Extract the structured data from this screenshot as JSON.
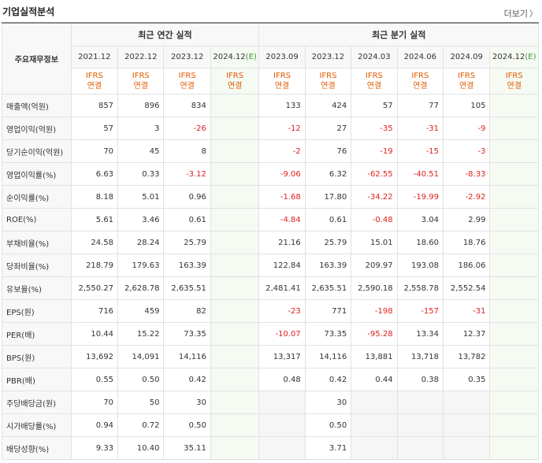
{
  "header": {
    "title": "기업실적분석",
    "more_label": "더보기"
  },
  "table": {
    "label_header": "주요재무정보",
    "groups": {
      "annual": "최근 연간 실적",
      "quarter": "최근 분기 실적"
    },
    "periods": [
      "2021.12",
      "2022.12",
      "2023.12",
      "2024.12",
      "2023.09",
      "2023.12",
      "2024.03",
      "2024.06",
      "2024.09",
      "2024.12"
    ],
    "est_mark": "(E)",
    "ifrs_top": "IFRS",
    "ifrs_bottom": "연결",
    "rows": [
      {
        "label": "매출액(억원)",
        "values": [
          "857",
          "896",
          "834",
          "",
          "133",
          "424",
          "57",
          "77",
          "105",
          ""
        ]
      },
      {
        "label": "영업이익(억원)",
        "values": [
          "57",
          "3",
          "-26",
          "",
          "-12",
          "27",
          "-35",
          "-31",
          "-9",
          ""
        ]
      },
      {
        "label": "당기순이익(억원)",
        "values": [
          "70",
          "45",
          "8",
          "",
          "-2",
          "76",
          "-19",
          "-15",
          "-3",
          ""
        ]
      },
      {
        "label": "영업이익률(%)",
        "values": [
          "6.63",
          "0.33",
          "-3.12",
          "",
          "-9.06",
          "6.32",
          "-62.55",
          "-40.51",
          "-8.33",
          ""
        ]
      },
      {
        "label": "순이익률(%)",
        "values": [
          "8.18",
          "5.01",
          "0.96",
          "",
          "-1.68",
          "17.80",
          "-34.22",
          "-19.99",
          "-2.92",
          ""
        ]
      },
      {
        "label": "ROE(%)",
        "values": [
          "5.61",
          "3.46",
          "0.61",
          "",
          "-4.84",
          "0.61",
          "-0.48",
          "3.04",
          "2.99",
          ""
        ]
      },
      {
        "label": "부채비율(%)",
        "values": [
          "24.58",
          "28.24",
          "25.79",
          "",
          "21.16",
          "25.79",
          "15.01",
          "18.60",
          "18.76",
          ""
        ]
      },
      {
        "label": "당좌비율(%)",
        "values": [
          "218.79",
          "179.63",
          "163.39",
          "",
          "122.84",
          "163.39",
          "209.97",
          "193.08",
          "186.06",
          ""
        ]
      },
      {
        "label": "유보율(%)",
        "values": [
          "2,550.27",
          "2,628.78",
          "2,635.51",
          "",
          "2,481.41",
          "2,635.51",
          "2,590.18",
          "2,558.78",
          "2,552.54",
          ""
        ]
      },
      {
        "label": "EPS(원)",
        "values": [
          "716",
          "459",
          "82",
          "",
          "-23",
          "771",
          "-198",
          "-157",
          "-31",
          ""
        ]
      },
      {
        "label": "PER(배)",
        "values": [
          "10.44",
          "15.22",
          "73.35",
          "",
          "-10.07",
          "73.35",
          "-95.28",
          "13.34",
          "12.37",
          ""
        ]
      },
      {
        "label": "BPS(원)",
        "values": [
          "13,692",
          "14,091",
          "14,116",
          "",
          "13,317",
          "14,116",
          "13,881",
          "13,718",
          "13,782",
          ""
        ]
      },
      {
        "label": "PBR(배)",
        "values": [
          "0.55",
          "0.50",
          "0.42",
          "",
          "0.48",
          "0.42",
          "0.44",
          "0.38",
          "0.35",
          ""
        ]
      },
      {
        "label": "주당배당금(원)",
        "values": [
          "70",
          "50",
          "30",
          "",
          "",
          "30",
          "",
          "",
          "",
          ""
        ]
      },
      {
        "label": "시가배당률(%)",
        "values": [
          "0.94",
          "0.72",
          "0.50",
          "",
          "",
          "0.50",
          "",
          "",
          "",
          ""
        ]
      },
      {
        "label": "배당성향(%)",
        "values": [
          "9.33",
          "10.40",
          "35.11",
          "",
          "",
          "3.71",
          "",
          "",
          "",
          ""
        ]
      }
    ]
  },
  "colors": {
    "negative": "#e02020",
    "ifrs": "#e25c00",
    "estimate": "#3a9a3a"
  }
}
